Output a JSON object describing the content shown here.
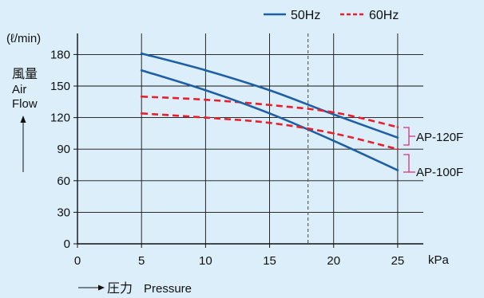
{
  "legend": {
    "solid_label": "50Hz",
    "dashed_label": "60Hz"
  },
  "y_unit": "(ℓ/min)",
  "y_title_jp": "風量",
  "y_title_en_1": "Air",
  "y_title_en_2": "Flow",
  "x_unit": "kPa",
  "x_title_jp": "圧力",
  "x_title_en": "Pressure",
  "series_labels": {
    "ap120": "AP-120F",
    "ap100": "AP-100F"
  },
  "colors": {
    "background": "#dbeef9",
    "solid_line": "#1f5fa3",
    "dashed_line": "#e8202e",
    "bracket": "#d6317a",
    "grid": "#111111"
  },
  "chart_data": {
    "type": "line",
    "x_ticks": [
      0,
      5,
      10,
      15,
      20,
      25
    ],
    "y_ticks": [
      0,
      30,
      60,
      90,
      120,
      150,
      180
    ],
    "xlim": [
      0,
      27
    ],
    "ylim": [
      0,
      200
    ],
    "xlabel": "圧力 Pressure",
    "ylabel": "風量 Air Flow (ℓ/min)",
    "x_unit": "kPa",
    "grid": true,
    "legend_position": "top-right",
    "reference_line_x": 18,
    "series": [
      {
        "model": "AP-120F",
        "frequency": "50Hz",
        "style": "solid",
        "x": [
          5,
          10,
          15,
          20,
          25
        ],
        "y": [
          181,
          165,
          146,
          123,
          101
        ]
      },
      {
        "model": "AP-120F",
        "frequency": "60Hz",
        "style": "dashed",
        "x": [
          5,
          10,
          15,
          20,
          25
        ],
        "y": [
          140,
          137,
          132,
          125,
          111
        ]
      },
      {
        "model": "AP-100F",
        "frequency": "50Hz",
        "style": "solid",
        "x": [
          5,
          10,
          15,
          20,
          25
        ],
        "y": [
          165,
          146,
          124,
          98,
          70
        ]
      },
      {
        "model": "AP-100F",
        "frequency": "60Hz",
        "style": "dashed",
        "x": [
          5,
          10,
          15,
          20,
          25
        ],
        "y": [
          124,
          120,
          115,
          105,
          90
        ]
      }
    ]
  }
}
